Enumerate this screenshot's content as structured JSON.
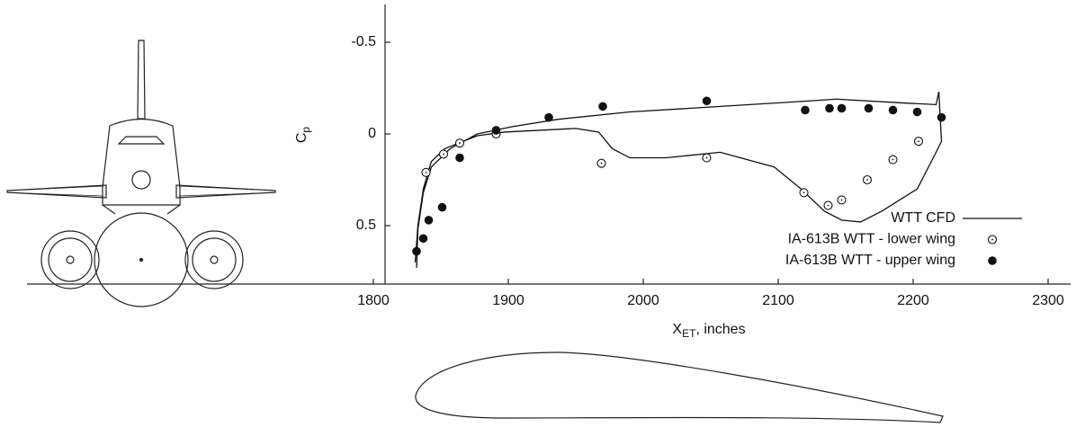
{
  "chart_data": {
    "type": "scatter",
    "ylabel": [
      "C",
      "p"
    ],
    "xlabel": [
      "X",
      "ET",
      ", inches"
    ],
    "xlim": [
      1800,
      2300
    ],
    "xticks": [
      1800,
      1900,
      2000,
      2100,
      2200,
      2300
    ],
    "ylim": [
      -0.7,
      0.8
    ],
    "yticks": [
      -0.5,
      0,
      0.5
    ],
    "y_inverted": true,
    "legend": "lower-right",
    "series": [
      {
        "name": "WTT CFD",
        "color": "#111111",
        "marker": "line",
        "x": [
          1832,
          1833,
          1837,
          1843,
          1857,
          1877,
          1903,
          1937,
          1990,
          2057,
          2123,
          2143,
          2190,
          2217,
          2219,
          2221,
          2217,
          2203,
          2177,
          2161,
          2147,
          2134,
          2117,
          2097,
          2057,
          2017,
          1990,
          1977,
          1967,
          1950,
          1897,
          1877,
          1853,
          1843,
          1837,
          1833,
          1831
        ],
        "values": [
          0.73,
          0.52,
          0.32,
          0.18,
          0.08,
          0.0,
          -0.04,
          -0.08,
          -0.12,
          -0.15,
          -0.18,
          -0.19,
          -0.17,
          -0.16,
          -0.23,
          0.04,
          0.1,
          0.3,
          0.42,
          0.48,
          0.47,
          0.42,
          0.3,
          0.18,
          0.1,
          0.13,
          0.13,
          0.08,
          -0.01,
          -0.03,
          -0.01,
          0.01,
          0.08,
          0.15,
          0.3,
          0.5,
          0.7
        ]
      },
      {
        "name": "IA-613B WTT - lower wing",
        "color": "#111111",
        "marker": "open-circle",
        "x": [
          1839,
          1852,
          1864,
          1891,
          1969,
          2047,
          2119,
          2137,
          2147,
          2166,
          2185,
          2204
        ],
        "values": [
          0.21,
          0.11,
          0.05,
          0.0,
          0.16,
          0.13,
          0.32,
          0.39,
          0.36,
          0.25,
          0.14,
          0.04
        ]
      },
      {
        "name": "IA-613B WTT - upper wing",
        "color": "#111111",
        "marker": "filled-circle",
        "x": [
          1832,
          1837,
          1841,
          1851,
          1864,
          1891,
          1930,
          1970,
          2047,
          2120,
          2138,
          2147,
          2167,
          2185,
          2203,
          2221
        ],
        "values": [
          0.64,
          0.57,
          0.47,
          0.4,
          0.13,
          -0.02,
          -0.09,
          -0.15,
          -0.18,
          -0.13,
          -0.14,
          -0.14,
          -0.14,
          -0.13,
          -0.12,
          -0.09
        ]
      }
    ]
  }
}
